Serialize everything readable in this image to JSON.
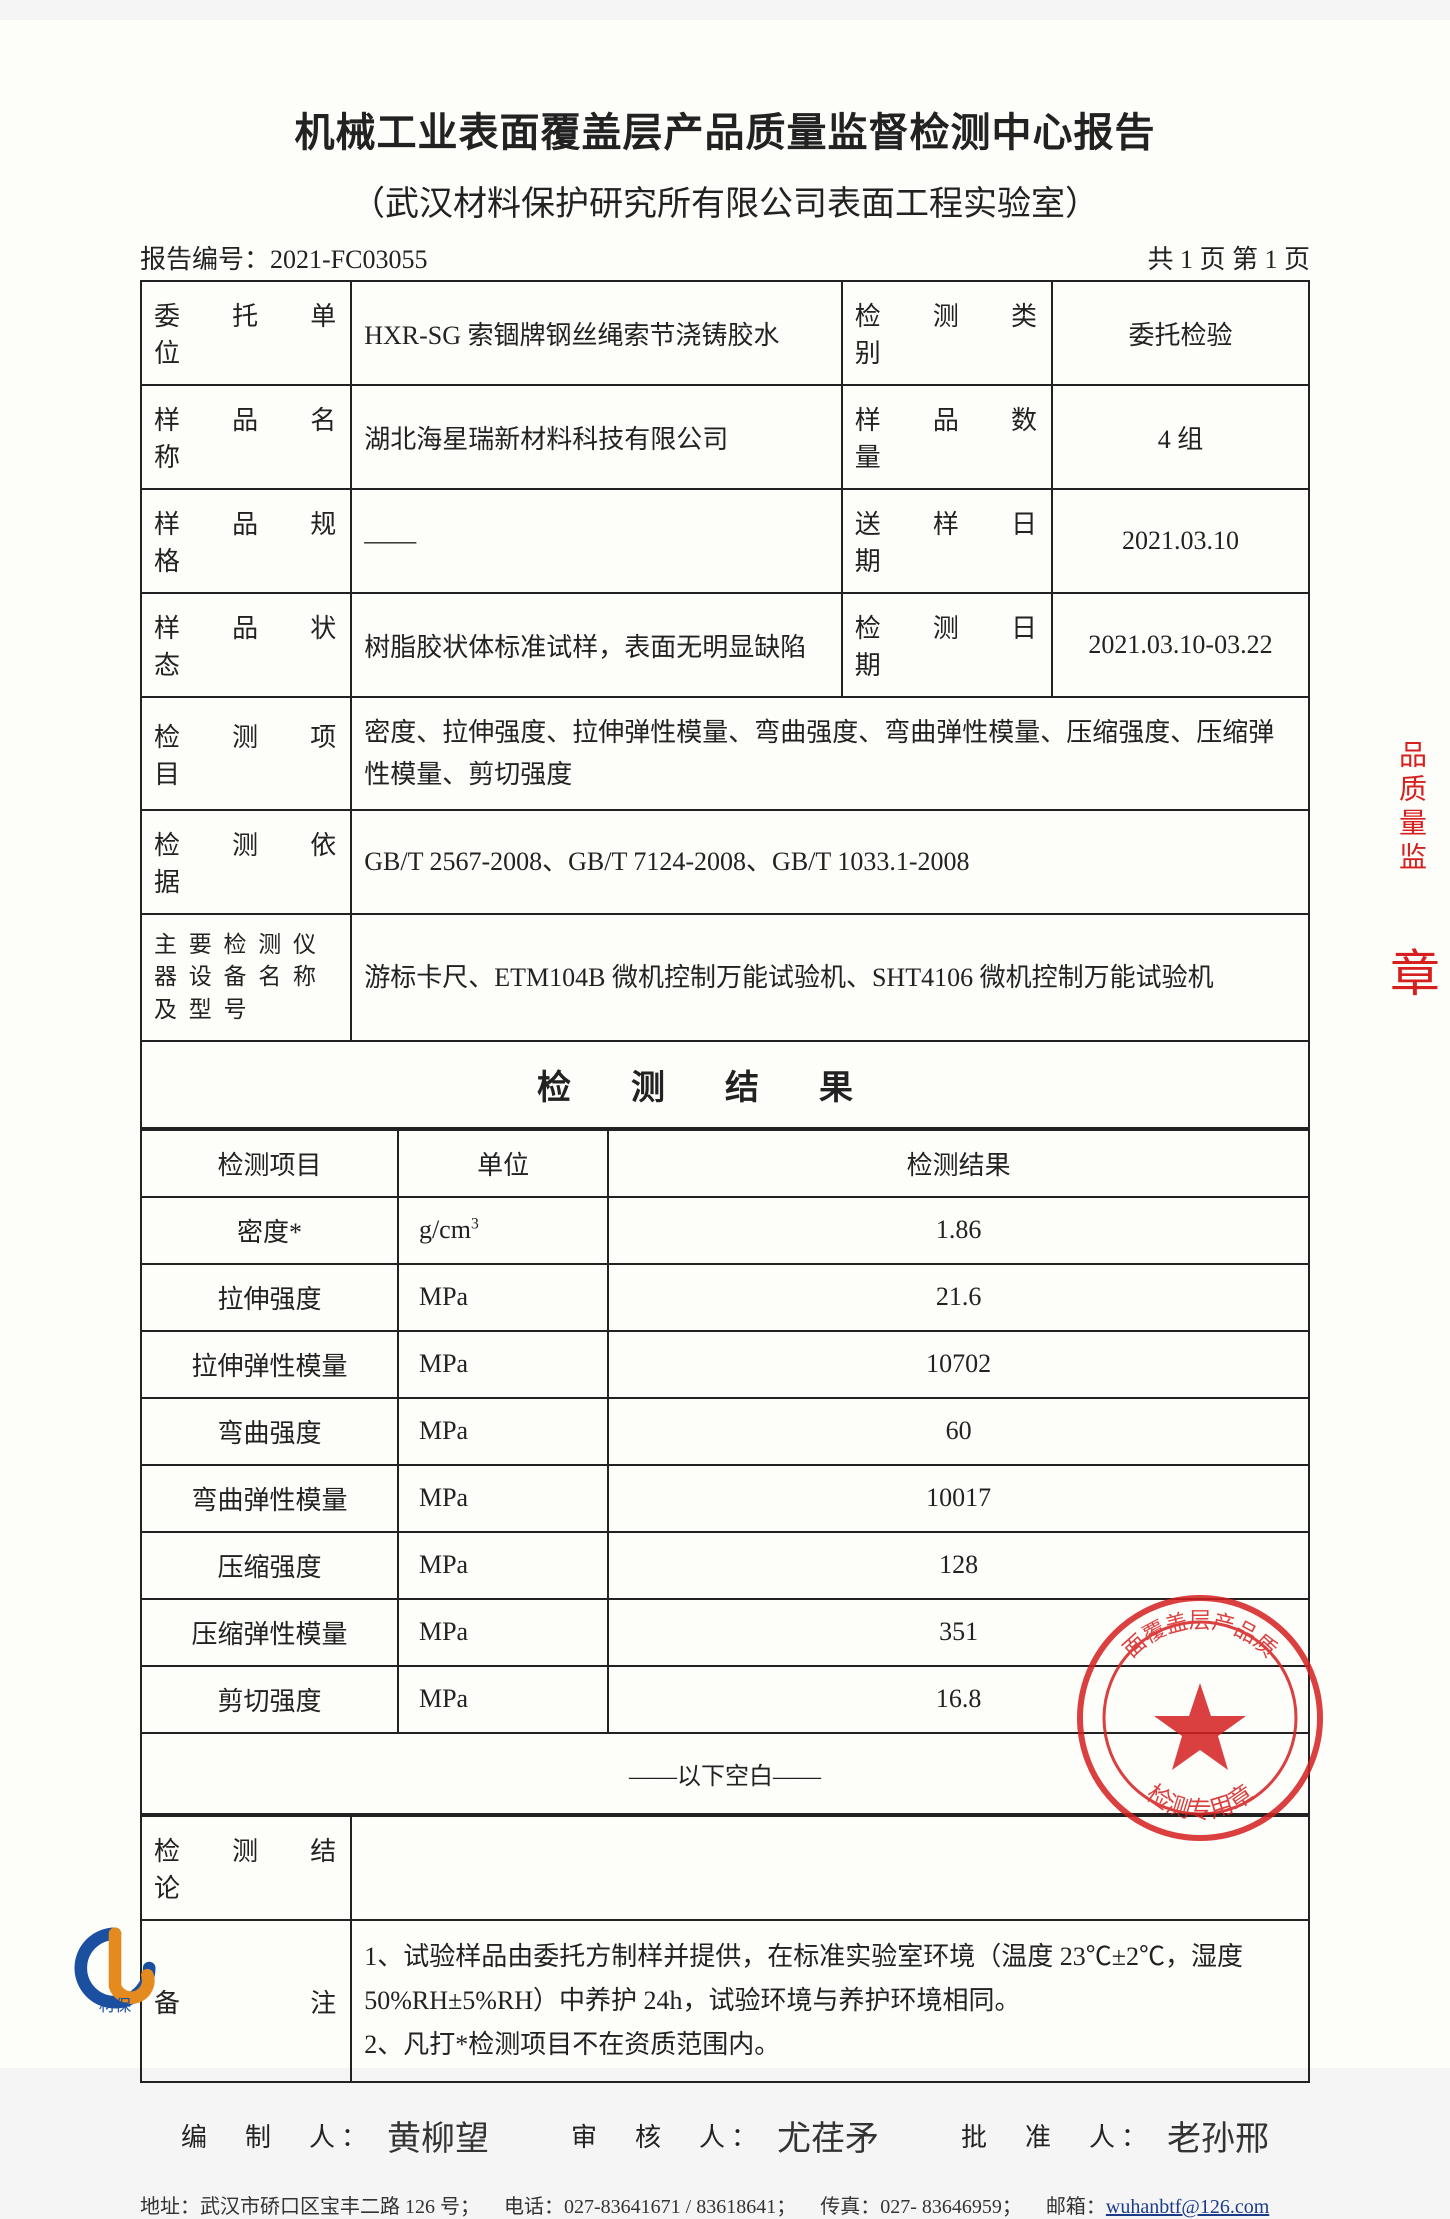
{
  "title": "机械工业表面覆盖层产品质量监督检测中心报告",
  "subtitle": "（武汉材料保护研究所有限公司表面工程实验室）",
  "report_no_label": "报告编号：",
  "report_no": "2021-FC03055",
  "page_info": "共 1 页  第 1 页",
  "info_rows": [
    {
      "l1": "委　托　单　位",
      "v1": "HXR-SG 索锢牌钢丝绳索节浇铸胶水",
      "l2": "检　测　类　别",
      "v2": "委托检验"
    },
    {
      "l1": "样　品　名　称",
      "v1": "湖北海星瑞新材料科技有限公司",
      "l2": "样　品　数　量",
      "v2": "4 组"
    },
    {
      "l1": "样　品　规　格",
      "v1": "——",
      "l2": "送　样　日　期",
      "v2": "2021.03.10"
    },
    {
      "l1": "样　品　状　态",
      "v1": "树脂胶状体标准试样，表面无明显缺陷",
      "l2": "检　测　日　期",
      "v2": "2021.03.10-03.22"
    }
  ],
  "wide_rows": [
    {
      "l": "检　测　项　目",
      "v": "密度、拉伸强度、拉伸弹性模量、弯曲强度、弯曲弹性模量、压缩强度、压缩弹性模量、剪切强度"
    },
    {
      "l": "检　测　依　据",
      "v": "GB/T 2567-2008、GB/T 7124-2008、GB/T 1033.1-2008"
    },
    {
      "l": "主 要 检 测 仪 器 设 备 名 称 及 型 号",
      "v": "游标卡尺、ETM104B 微机控制万能试验机、SHT4106 微机控制万能试验机",
      "two_line": true
    }
  ],
  "section_title": "检测结果",
  "results_header": {
    "item": "检测项目",
    "unit": "单位",
    "result": "检测结果"
  },
  "results": [
    {
      "item": "密度*",
      "unit": "g/cm³",
      "value": "1.86"
    },
    {
      "item": "拉伸强度",
      "unit": "MPa",
      "value": "21.6"
    },
    {
      "item": "拉伸弹性模量",
      "unit": "MPa",
      "value": "10702"
    },
    {
      "item": "弯曲强度",
      "unit": "MPa",
      "value": "60"
    },
    {
      "item": "弯曲弹性模量",
      "unit": "MPa",
      "value": "10017"
    },
    {
      "item": "压缩强度",
      "unit": "MPa",
      "value": "128"
    },
    {
      "item": "压缩弹性模量",
      "unit": "MPa",
      "value": "351"
    },
    {
      "item": "剪切强度",
      "unit": "MPa",
      "value": "16.8"
    }
  ],
  "blank_line": "——以下空白——",
  "conclusion_label": "检　测　结　论",
  "conclusion_value": "",
  "remark_label": "备　　　　注",
  "remark_value": "1、试验样品由委托方制样并提供，在标准实验室环境（温度 23℃±2℃，湿度 50%RH±5%RH）中养护 24h，试验环境与养护环境相同。\n2、凡打*检测项目不在资质范围内。",
  "sig": {
    "compiler_label": "编　制　人：",
    "compiler": "黄柳望",
    "reviewer_label": "审　核　人：",
    "reviewer": "尤荏矛",
    "approver_label": "批　准　人：",
    "approver": "老孙邢"
  },
  "contact": {
    "address_label": "地址：",
    "address": "武汉市硚口区宝丰二路 126 号；",
    "tel_label": "电话：",
    "tel": "027-83641671 / 83618641；",
    "fax_label": "传真：",
    "fax": "027- 83646959；",
    "email_label": "邮箱：",
    "email": "wuhanbtf@126.com"
  },
  "stamp_text_top": "面覆盖层产品质",
  "stamp_text_bottom": "检测专用章",
  "side_stamp_text": "品质量监",
  "side_stamp_zhang": "章",
  "logo_text": "材保",
  "colors": {
    "border": "#222222",
    "stamp": "#d62020",
    "logo_blue": "#1b4fa0",
    "logo_orange": "#e58a1f",
    "link": "#1a3a8a",
    "background": "#fdfdfa"
  }
}
